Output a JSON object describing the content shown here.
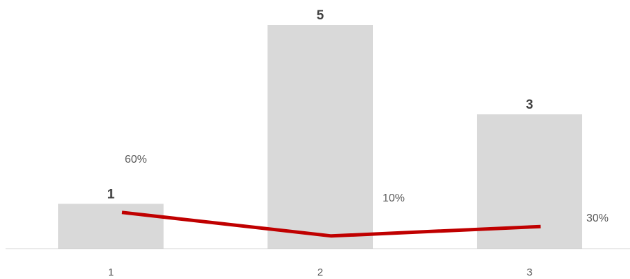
{
  "chart_data": {
    "type": "bar",
    "categories": [
      "1",
      "2",
      "3"
    ],
    "series": [
      {
        "type": "bar",
        "values": [
          1,
          5,
          3
        ],
        "color": "#d9d9d9"
      },
      {
        "type": "line",
        "values": [
          0.6,
          0.1,
          0.3
        ],
        "labels": [
          "60%",
          "10%",
          "30%"
        ],
        "color": "#c00000"
      }
    ],
    "bar_data_labels": [
      "1",
      "5",
      "3"
    ],
    "title": "",
    "xlabel": "",
    "ylabel": "",
    "grid": false,
    "legend": "none"
  }
}
